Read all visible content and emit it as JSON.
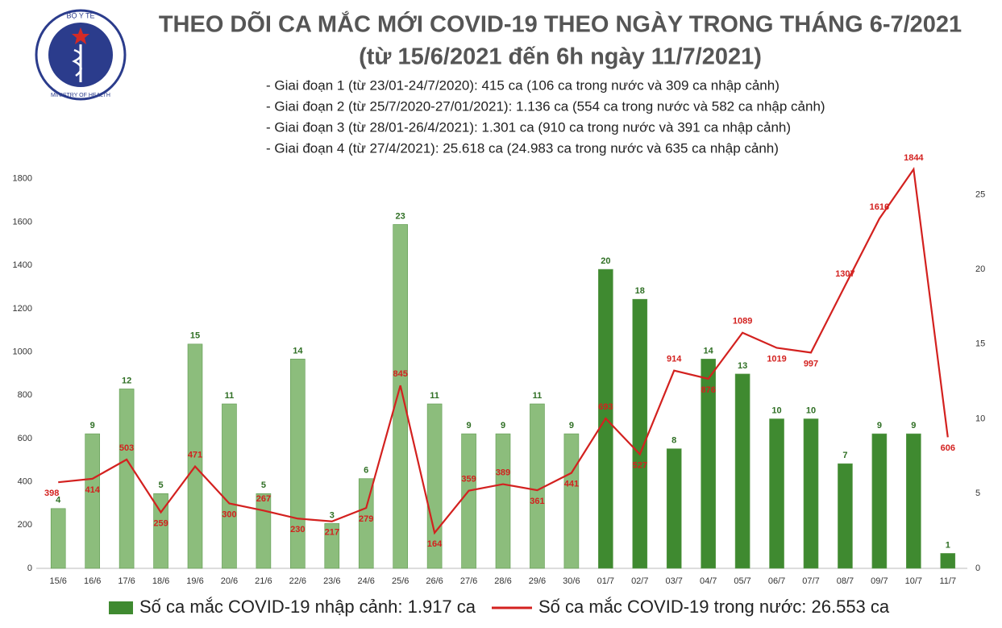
{
  "logo": {
    "top_text": "BỘ Y TẾ",
    "bottom_text": "MINISTRY OF HEALTH"
  },
  "chart_data": {
    "type": "bar-line",
    "title": "THEO DÕI CA MẮC MỚI COVID-19 THEO NGÀY TRONG THÁNG 6-7/2021",
    "subtitle": "(từ 15/6/2021 đến 6h ngày 11/7/2021)",
    "notes": [
      "- Giai đoạn 1 (từ 23/01-24/7/2020): 415 ca (106 ca trong nước và 309 ca nhập cảnh)",
      "- Giai đoạn 2 (từ 25/7/2020-27/01/2021): 1.136 ca (554 ca trong nước và 582 ca nhập cảnh)",
      "- Giai đoạn 3 (từ 28/01-26/4/2021): 1.301 ca (910 ca trong nước và 391 ca nhập cảnh)",
      "- Giai đoạn 4 (từ 27/4/2021): 25.618 ca (24.983 ca trong nước và 635 ca nhập cảnh)"
    ],
    "categories": [
      "15/6",
      "16/6",
      "17/6",
      "18/6",
      "19/6",
      "20/6",
      "21/6",
      "22/6",
      "23/6",
      "24/6",
      "25/6",
      "26/6",
      "27/6",
      "28/6",
      "29/6",
      "30/6",
      "01/7",
      "02/7",
      "03/7",
      "04/7",
      "05/7",
      "06/7",
      "07/7",
      "08/7",
      "09/7",
      "10/7",
      "11/7"
    ],
    "series": [
      {
        "name": "Số ca mắc COVID-19 nhập cảnh: 1.917 ca",
        "type": "bar",
        "axis": "y2",
        "color": "#3f8a30",
        "colors": [
          "#8cbd7c",
          "#8cbd7c",
          "#8cbd7c",
          "#8cbd7c",
          "#8cbd7c",
          "#8cbd7c",
          "#8cbd7c",
          "#8cbd7c",
          "#8cbd7c",
          "#8cbd7c",
          "#8cbd7c",
          "#8cbd7c",
          "#8cbd7c",
          "#8cbd7c",
          "#8cbd7c",
          "#8cbd7c",
          "#3f8a30",
          "#3f8a30",
          "#3f8a30",
          "#3f8a30",
          "#3f8a30",
          "#3f8a30",
          "#3f8a30",
          "#3f8a30",
          "#3f8a30",
          "#3f8a30",
          "#3f8a30"
        ],
        "values": [
          4,
          9,
          12,
          5,
          15,
          11,
          5,
          14,
          3,
          6,
          23,
          11,
          9,
          9,
          11,
          9,
          20,
          18,
          8,
          14,
          13,
          10,
          10,
          7,
          9,
          9,
          1
        ]
      },
      {
        "name": "Số ca mắc COVID-19 trong nước: 26.553 ca",
        "type": "line",
        "color": "#d3211f",
        "values": [
          398,
          414,
          503,
          259,
          471,
          300,
          267,
          230,
          217,
          279,
          845,
          164,
          359,
          389,
          361,
          441,
          693,
          527,
          914,
          876,
          1089,
          1019,
          997,
          1307,
          1616,
          1844,
          606
        ]
      }
    ],
    "ylim": [
      0,
      1900
    ],
    "yticks": [
      0,
      200,
      400,
      600,
      800,
      1000,
      1200,
      1400,
      1600,
      1800
    ],
    "y2lim": [
      0,
      27.5
    ],
    "y2ticks": [
      0,
      5,
      10,
      15,
      20,
      25
    ],
    "grid": false
  }
}
